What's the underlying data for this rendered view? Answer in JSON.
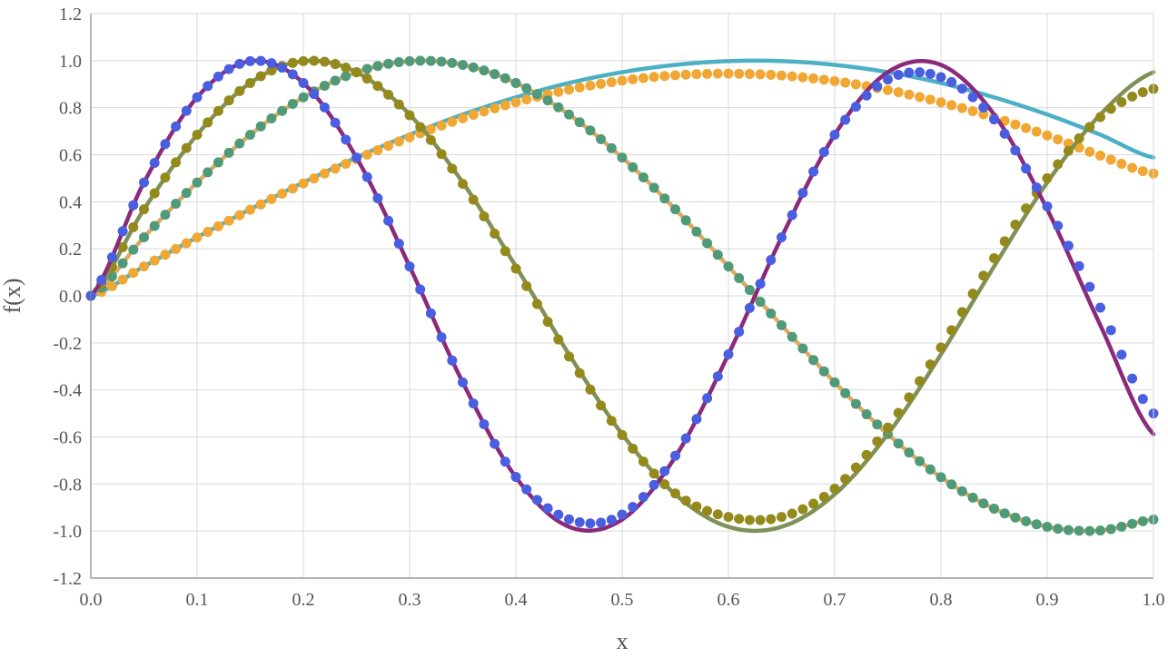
{
  "chart_data": {
    "type": "line",
    "title": "",
    "xlabel": "x",
    "ylabel": "f(x)",
    "xlim": [
      0.0,
      1.0
    ],
    "ylim": [
      -1.2,
      1.2
    ],
    "grid": true,
    "x_ticks": [
      "0.0",
      "0.1",
      "0.2",
      "0.3",
      "0.4",
      "0.5",
      "0.6",
      "0.7",
      "0.8",
      "0.9",
      "1.0"
    ],
    "y_ticks": [
      "1.2",
      "1.0",
      "0.8",
      "0.6",
      "0.4",
      "0.2",
      "0.0",
      "-0.2",
      "-0.4",
      "-0.6",
      "-0.8",
      "-1.0",
      "-1.2"
    ],
    "series": [
      {
        "style": "line",
        "color": "#4bb0c4",
        "x": [
          0.0,
          0.05,
          0.1,
          0.15,
          0.2,
          0.25,
          0.3,
          0.35,
          0.4,
          0.45,
          0.5,
          0.55,
          0.6,
          0.65,
          0.7,
          0.75,
          0.8,
          0.85,
          0.9,
          0.95,
          1.0
        ],
        "values": [
          0.0,
          0.125,
          0.249,
          0.368,
          0.482,
          0.588,
          0.685,
          0.771,
          0.844,
          0.905,
          0.951,
          0.982,
          0.998,
          0.998,
          0.982,
          0.951,
          0.905,
          0.844,
          0.771,
          0.685,
          0.588
        ]
      },
      {
        "style": "markers",
        "color": "#f0a733",
        "x": [
          0.0,
          0.05,
          0.1,
          0.15,
          0.2,
          0.25,
          0.3,
          0.35,
          0.4,
          0.45,
          0.5,
          0.55,
          0.6,
          0.65,
          0.7,
          0.75,
          0.8,
          0.85,
          0.9,
          0.95,
          1.0
        ],
        "values": [
          0.0,
          0.125,
          0.248,
          0.366,
          0.478,
          0.581,
          0.674,
          0.755,
          0.823,
          0.877,
          0.915,
          0.938,
          0.945,
          0.937,
          0.913,
          0.875,
          0.823,
          0.758,
          0.682,
          0.596,
          0.52
        ]
      },
      {
        "style": "line",
        "color": "#e0a863",
        "x": [
          0.0,
          0.05,
          0.1,
          0.15,
          0.2,
          0.25,
          0.3,
          0.35,
          0.4,
          0.45,
          0.5,
          0.55,
          0.6,
          0.65,
          0.7,
          0.75,
          0.8,
          0.85,
          0.9,
          0.95,
          1.0
        ],
        "values": [
          0.0,
          0.249,
          0.482,
          0.685,
          0.844,
          0.951,
          0.998,
          0.982,
          0.905,
          0.771,
          0.588,
          0.368,
          0.125,
          -0.125,
          -0.368,
          -0.588,
          -0.771,
          -0.905,
          -0.982,
          -0.998,
          -0.951
        ]
      },
      {
        "style": "markers",
        "color": "#4f9a78",
        "x": [
          0.0,
          0.05,
          0.1,
          0.15,
          0.2,
          0.25,
          0.3,
          0.35,
          0.4,
          0.45,
          0.5,
          0.55,
          0.6,
          0.65,
          0.7,
          0.75,
          0.8,
          0.85,
          0.9,
          0.95,
          1.0
        ],
        "values": [
          0.0,
          0.249,
          0.482,
          0.685,
          0.844,
          0.951,
          0.998,
          0.982,
          0.905,
          0.771,
          0.588,
          0.368,
          0.125,
          -0.125,
          -0.368,
          -0.588,
          -0.771,
          -0.905,
          -0.982,
          -0.998,
          -0.951
        ]
      },
      {
        "style": "line",
        "color": "#7f9156",
        "x": [
          0.0,
          0.05,
          0.1,
          0.15,
          0.2,
          0.25,
          0.3,
          0.35,
          0.4,
          0.45,
          0.5,
          0.55,
          0.6,
          0.65,
          0.7,
          0.75,
          0.8,
          0.85,
          0.9,
          0.95,
          1.0
        ],
        "values": [
          0.0,
          0.368,
          0.685,
          0.905,
          0.998,
          0.951,
          0.771,
          0.482,
          0.125,
          -0.249,
          -0.588,
          -0.844,
          -0.982,
          -0.982,
          -0.844,
          -0.588,
          -0.249,
          0.125,
          0.482,
          0.771,
          0.951
        ]
      },
      {
        "style": "markers",
        "color": "#948a1c",
        "x": [
          0.0,
          0.05,
          0.1,
          0.15,
          0.2,
          0.25,
          0.3,
          0.35,
          0.4,
          0.45,
          0.5,
          0.55,
          0.6,
          0.65,
          0.7,
          0.75,
          0.8,
          0.85,
          0.9,
          0.95,
          1.0
        ],
        "values": [
          0.0,
          0.368,
          0.685,
          0.905,
          0.998,
          0.95,
          0.768,
          0.476,
          0.116,
          -0.258,
          -0.592,
          -0.84,
          -0.94,
          -0.94,
          -0.82,
          -0.56,
          -0.22,
          0.16,
          0.5,
          0.76,
          0.88
        ]
      },
      {
        "style": "line",
        "color": "#8a2a7a",
        "x": [
          0.0,
          0.05,
          0.1,
          0.15,
          0.2,
          0.25,
          0.3,
          0.35,
          0.4,
          0.45,
          0.5,
          0.55,
          0.6,
          0.65,
          0.7,
          0.75,
          0.8,
          0.85,
          0.9,
          0.95,
          1.0
        ],
        "values": [
          0.0,
          0.482,
          0.844,
          0.998,
          0.905,
          0.588,
          0.125,
          -0.368,
          -0.771,
          -0.982,
          -0.951,
          -0.685,
          -0.249,
          0.249,
          0.685,
          0.951,
          0.982,
          0.771,
          0.368,
          -0.125,
          -0.588
        ]
      },
      {
        "style": "markers",
        "color": "#4a5ee0",
        "x": [
          0.0,
          0.05,
          0.1,
          0.15,
          0.2,
          0.25,
          0.3,
          0.35,
          0.4,
          0.45,
          0.5,
          0.55,
          0.6,
          0.65,
          0.7,
          0.75,
          0.8,
          0.85,
          0.9,
          0.95,
          1.0
        ],
        "values": [
          0.0,
          0.482,
          0.844,
          0.998,
          0.905,
          0.588,
          0.125,
          -0.368,
          -0.77,
          -0.95,
          -0.93,
          -0.68,
          -0.249,
          0.249,
          0.685,
          0.92,
          0.93,
          0.75,
          0.38,
          -0.05,
          -0.5
        ]
      }
    ]
  }
}
